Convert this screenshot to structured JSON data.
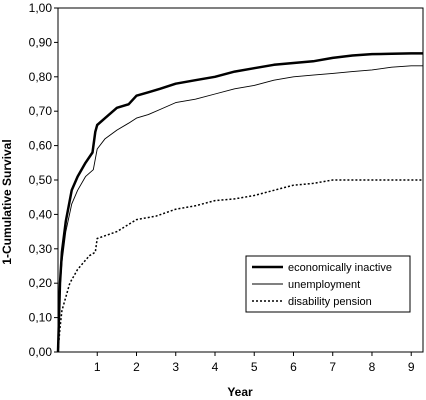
{
  "chart_data": {
    "type": "line",
    "title": "",
    "xlabel": "Year",
    "ylabel": "1-Cumulative Survival",
    "xlim": [
      0,
      9.3
    ],
    "ylim": [
      0,
      1
    ],
    "x_ticks": [
      1,
      2,
      3,
      4,
      5,
      6,
      7,
      8,
      9
    ],
    "x_tick_labels": [
      "1",
      "2",
      "3",
      "4",
      "5",
      "6",
      "7",
      "8",
      "9"
    ],
    "y_ticks": [
      0,
      0.1,
      0.2,
      0.3,
      0.4,
      0.5,
      0.6,
      0.7,
      0.8,
      0.9,
      1.0
    ],
    "y_tick_labels": [
      "0,00",
      "0,10",
      "0,20",
      "0,30",
      "0,40",
      "0,50",
      "0,60",
      "0,70",
      "0,80",
      "0,90",
      "1,00"
    ],
    "grid": false,
    "legend_position": "bottom-right",
    "series": [
      {
        "name": "economically inactive",
        "style": "solid-thick",
        "color": "#000000",
        "x": [
          0,
          0.05,
          0.1,
          0.2,
          0.35,
          0.5,
          0.7,
          0.88,
          0.95,
          1.0,
          1.2,
          1.5,
          1.8,
          2.0,
          2.3,
          2.6,
          3.0,
          3.5,
          4.0,
          4.5,
          5.0,
          5.5,
          6.0,
          6.5,
          7.0,
          7.5,
          8.0,
          8.5,
          9.0,
          9.3
        ],
        "y": [
          0,
          0.2,
          0.29,
          0.38,
          0.47,
          0.51,
          0.55,
          0.58,
          0.64,
          0.66,
          0.68,
          0.71,
          0.72,
          0.745,
          0.755,
          0.765,
          0.78,
          0.79,
          0.8,
          0.815,
          0.825,
          0.835,
          0.84,
          0.845,
          0.855,
          0.862,
          0.866,
          0.867,
          0.868,
          0.868
        ]
      },
      {
        "name": "unemployment",
        "style": "solid-thin",
        "color": "#000000",
        "x": [
          0,
          0.05,
          0.1,
          0.2,
          0.35,
          0.5,
          0.7,
          0.9,
          1.0,
          1.2,
          1.5,
          1.8,
          2.0,
          2.3,
          2.6,
          3.0,
          3.5,
          4.0,
          4.5,
          5.0,
          5.5,
          6.0,
          6.5,
          7.0,
          7.5,
          8.0,
          8.5,
          9.0,
          9.3
        ],
        "y": [
          0,
          0.18,
          0.26,
          0.35,
          0.43,
          0.47,
          0.51,
          0.53,
          0.59,
          0.62,
          0.645,
          0.665,
          0.68,
          0.69,
          0.705,
          0.725,
          0.735,
          0.75,
          0.765,
          0.775,
          0.79,
          0.8,
          0.805,
          0.81,
          0.815,
          0.82,
          0.828,
          0.832,
          0.832
        ]
      },
      {
        "name": "disability pension",
        "style": "dotted",
        "color": "#000000",
        "x": [
          0,
          0.05,
          0.1,
          0.3,
          0.5,
          0.8,
          0.95,
          1.0,
          1.5,
          2.0,
          2.5,
          3.0,
          3.5,
          4.0,
          4.5,
          5.0,
          5.5,
          6.0,
          6.5,
          7.0,
          7.5,
          8.0,
          8.5,
          9.0,
          9.3
        ],
        "y": [
          0,
          0.07,
          0.12,
          0.2,
          0.24,
          0.28,
          0.29,
          0.33,
          0.35,
          0.385,
          0.395,
          0.415,
          0.425,
          0.44,
          0.445,
          0.455,
          0.47,
          0.485,
          0.49,
          0.5,
          0.5,
          0.5,
          0.5,
          0.5,
          0.5
        ]
      }
    ]
  }
}
